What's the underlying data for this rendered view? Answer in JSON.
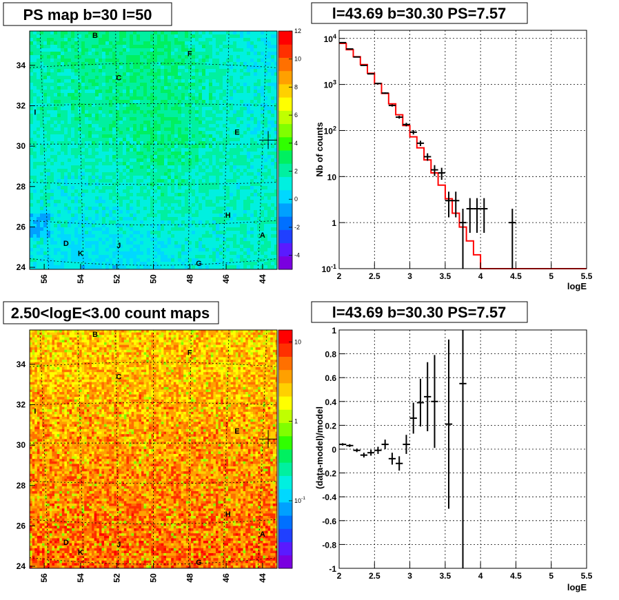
{
  "colors": {
    "model_line": "#ff0000",
    "data_marker": "#000000",
    "palette": [
      "#7a00e0",
      "#5a1aff",
      "#2040ff",
      "#0070ff",
      "#00a0ff",
      "#00d8ff",
      "#00f0e0",
      "#00f0a0",
      "#00f060",
      "#30ff00",
      "#80ff00",
      "#c0ff00",
      "#ffff00",
      "#ffd000",
      "#ffa000",
      "#ff7000",
      "#ff3000",
      "#ff0000"
    ]
  },
  "chart_data": [
    {
      "type": "heatmap",
      "title": "PS map b=30 l=50",
      "xlim": [
        56.8,
        43.2
      ],
      "ylim": [
        23.9,
        35.7
      ],
      "x_ticks": [
        "56",
        "54",
        "52",
        "50",
        "48",
        "46",
        "44"
      ],
      "y_ticks": [
        "24",
        "26",
        "28",
        "30",
        "32",
        "34"
      ],
      "colorbar_ticks": [
        "12",
        "10",
        "8",
        "6",
        "4",
        "2",
        "0",
        "-2",
        "-4"
      ],
      "colorbar_range": [
        -5,
        12
      ],
      "sources": [
        {
          "label": "B",
          "l": 53.2,
          "b": 35.5
        },
        {
          "label": "F",
          "l": 48.0,
          "b": 34.6
        },
        {
          "label": "C",
          "l": 51.9,
          "b": 33.4
        },
        {
          "label": "I",
          "l": 56.5,
          "b": 31.7
        },
        {
          "label": "E",
          "l": 45.4,
          "b": 30.7
        },
        {
          "label": "H",
          "l": 45.9,
          "b": 26.6
        },
        {
          "label": "A",
          "l": 44.0,
          "b": 25.6
        },
        {
          "label": "D",
          "l": 54.8,
          "b": 25.2
        },
        {
          "label": "J",
          "l": 51.9,
          "b": 25.1
        },
        {
          "label": "K",
          "l": 54.0,
          "b": 24.7
        },
        {
          "label": "G",
          "l": 47.5,
          "b": 24.2
        }
      ],
      "marker": {
        "l": 43.69,
        "b": 30.3
      }
    },
    {
      "type": "line",
      "title": "l=43.69 b=30.30 PS=7.57",
      "xlabel": "logE",
      "ylabel": "Nb of counts",
      "xlim": [
        2,
        5.5
      ],
      "ylim": [
        0.1,
        15000
      ],
      "log_y": true,
      "x_ticks": [
        "2",
        "2.5",
        "3",
        "3.5",
        "4",
        "4.5",
        "5",
        "5.5"
      ],
      "y_ticks": [
        "10^{-1}",
        "1",
        "10",
        "10^{2}",
        "10^{3}",
        "10^{4}"
      ],
      "model_steps": [
        {
          "x0": 2.0,
          "x1": 2.1,
          "y": 7800
        },
        {
          "x0": 2.1,
          "x1": 2.2,
          "y": 5700
        },
        {
          "x0": 2.2,
          "x1": 2.3,
          "y": 4000
        },
        {
          "x0": 2.3,
          "x1": 2.4,
          "y": 2700
        },
        {
          "x0": 2.4,
          "x1": 2.5,
          "y": 1750
        },
        {
          "x0": 2.5,
          "x1": 2.6,
          "y": 1050
        },
        {
          "x0": 2.6,
          "x1": 2.7,
          "y": 640
        },
        {
          "x0": 2.7,
          "x1": 2.8,
          "y": 380
        },
        {
          "x0": 2.8,
          "x1": 2.9,
          "y": 220
        },
        {
          "x0": 2.9,
          "x1": 3.0,
          "y": 128
        },
        {
          "x0": 3.0,
          "x1": 3.1,
          "y": 73
        },
        {
          "x0": 3.1,
          "x1": 3.2,
          "y": 42
        },
        {
          "x0": 3.2,
          "x1": 3.3,
          "y": 23
        },
        {
          "x0": 3.3,
          "x1": 3.4,
          "y": 12
        },
        {
          "x0": 3.4,
          "x1": 3.5,
          "y": 6.5
        },
        {
          "x0": 3.5,
          "x1": 3.6,
          "y": 3.3
        },
        {
          "x0": 3.6,
          "x1": 3.7,
          "y": 1.6
        },
        {
          "x0": 3.7,
          "x1": 3.8,
          "y": 0.8
        },
        {
          "x0": 3.8,
          "x1": 3.9,
          "y": 0.4
        },
        {
          "x0": 3.9,
          "x1": 4.0,
          "y": 0.2
        },
        {
          "x0": 4.0,
          "x1": 5.5,
          "y": 0.1
        }
      ],
      "data_points": [
        {
          "x": 2.05,
          "y": 8100,
          "err": 90
        },
        {
          "x": 2.15,
          "y": 5900,
          "err": 77
        },
        {
          "x": 2.25,
          "y": 3950,
          "err": 63
        },
        {
          "x": 2.35,
          "y": 2600,
          "err": 51
        },
        {
          "x": 2.45,
          "y": 1700,
          "err": 41
        },
        {
          "x": 2.55,
          "y": 1050,
          "err": 32
        },
        {
          "x": 2.65,
          "y": 650,
          "err": 25
        },
        {
          "x": 2.75,
          "y": 350,
          "err": 19
        },
        {
          "x": 2.85,
          "y": 195,
          "err": 14
        },
        {
          "x": 2.95,
          "y": 135,
          "err": 12
        },
        {
          "x": 3.05,
          "y": 92,
          "err": 10
        },
        {
          "x": 3.15,
          "y": 53,
          "err": 7
        },
        {
          "x": 3.25,
          "y": 27,
          "err": 5
        },
        {
          "x": 3.35,
          "y": 14,
          "err": 3.7
        },
        {
          "x": 3.45,
          "y": 12,
          "err": 3.5
        },
        {
          "x": 3.55,
          "y": 3,
          "err": 1.7
        },
        {
          "x": 3.65,
          "y": 3,
          "err": 1.7
        },
        {
          "x": 3.75,
          "y": 1,
          "err": 1
        },
        {
          "x": 3.85,
          "y": 2,
          "err": 1.4
        },
        {
          "x": 3.95,
          "y": 2,
          "err": 1.4
        },
        {
          "x": 4.05,
          "y": 2,
          "err": 1.4
        },
        {
          "x": 4.45,
          "y": 1,
          "err": 1
        }
      ]
    },
    {
      "type": "heatmap",
      "title": "2.50<logE<3.00 count maps",
      "xlim": [
        56.8,
        43.2
      ],
      "ylim": [
        23.9,
        35.7
      ],
      "x_ticks": [
        "56",
        "54",
        "52",
        "50",
        "48",
        "46",
        "44"
      ],
      "y_ticks": [
        "24",
        "26",
        "28",
        "30",
        "32",
        "34"
      ],
      "colorbar_ticks": [
        "10",
        "1",
        "10^{-1}"
      ],
      "log_colorbar": true
    },
    {
      "type": "scatter",
      "title": "l=43.69 b=30.30 PS=7.57",
      "xlabel": "logE",
      "ylabel": "(data-model)/model",
      "xlim": [
        2,
        5.5
      ],
      "ylim": [
        -1,
        1
      ],
      "x_ticks": [
        "2",
        "2.5",
        "3",
        "3.5",
        "4",
        "4.5",
        "5",
        "5.5"
      ],
      "y_ticks": [
        "-1",
        "-0.8",
        "-0.6",
        "-0.4",
        "-0.2",
        "0",
        "0.2",
        "0.4",
        "0.6",
        "0.8",
        "1"
      ],
      "points": [
        {
          "x": 2.05,
          "y": 0.04,
          "err": 0.01
        },
        {
          "x": 2.15,
          "y": 0.03,
          "err": 0.012
        },
        {
          "x": 2.25,
          "y": -0.01,
          "err": 0.015
        },
        {
          "x": 2.35,
          "y": -0.05,
          "err": 0.02
        },
        {
          "x": 2.45,
          "y": -0.03,
          "err": 0.025
        },
        {
          "x": 2.55,
          "y": -0.01,
          "err": 0.03
        },
        {
          "x": 2.65,
          "y": 0.04,
          "err": 0.04
        },
        {
          "x": 2.75,
          "y": -0.08,
          "err": 0.05
        },
        {
          "x": 2.85,
          "y": -0.12,
          "err": 0.06
        },
        {
          "x": 2.95,
          "y": 0.04,
          "err": 0.08
        },
        {
          "x": 3.05,
          "y": 0.26,
          "err": 0.13
        },
        {
          "x": 3.15,
          "y": 0.39,
          "err": 0.2
        },
        {
          "x": 3.25,
          "y": 0.44,
          "err": 0.29
        },
        {
          "x": 3.35,
          "y": 0.4,
          "err": 0.39
        },
        {
          "x": 3.55,
          "y": 0.21,
          "err": 0.71
        },
        {
          "x": 3.75,
          "y": 0.55,
          "err": 1.6
        }
      ]
    }
  ]
}
